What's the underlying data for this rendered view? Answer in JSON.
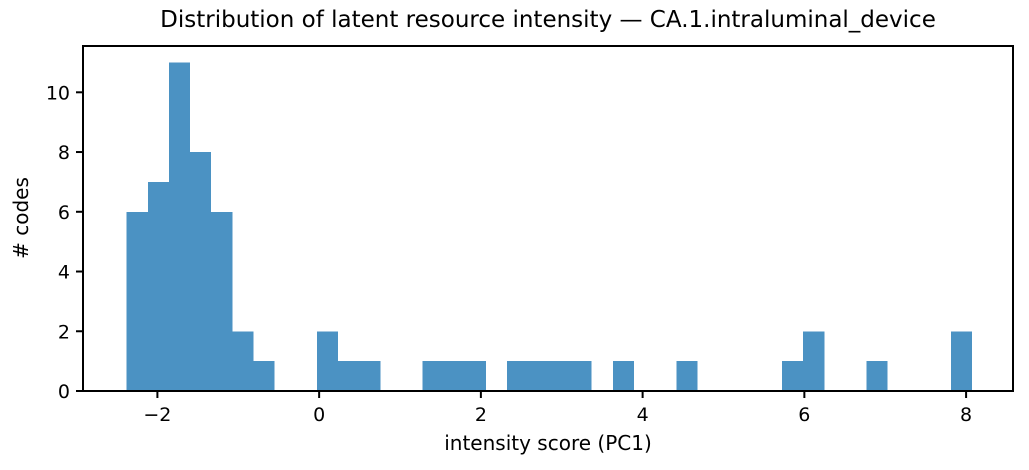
{
  "chart_data": {
    "type": "bar",
    "subtype": "histogram",
    "title": "Distribution of latent resource intensity — CA.1.intraluminal_device",
    "xlabel": "intensity score (PC1)",
    "ylabel": "# codes",
    "n_bins": 40,
    "bin_start": -2.38,
    "bin_width": 0.2614,
    "counts": [
      6,
      7,
      11,
      8,
      6,
      2,
      1,
      0,
      0,
      2,
      1,
      1,
      0,
      0,
      1,
      1,
      1,
      0,
      1,
      1,
      1,
      1,
      0,
      1,
      0,
      0,
      1,
      0,
      0,
      0,
      0,
      1,
      2,
      0,
      0,
      1,
      0,
      0,
      0,
      2
    ],
    "total_codes": 60,
    "xlim": [
      -2.92,
      8.58
    ],
    "ylim": [
      0,
      11.55
    ],
    "xticks": [
      -2,
      0,
      2,
      4,
      6,
      8
    ],
    "xtick_labels": [
      "−2",
      "0",
      "2",
      "4",
      "6",
      "8"
    ],
    "yticks": [
      0,
      2,
      4,
      6,
      8,
      10
    ],
    "ytick_labels": [
      "0",
      "2",
      "4",
      "6",
      "8",
      "10"
    ],
    "grid": false,
    "legend": null,
    "bar_color": "#4b92c3",
    "axis_color": "#000000",
    "text_color": "#000000",
    "background_color": "#ffffff"
  }
}
